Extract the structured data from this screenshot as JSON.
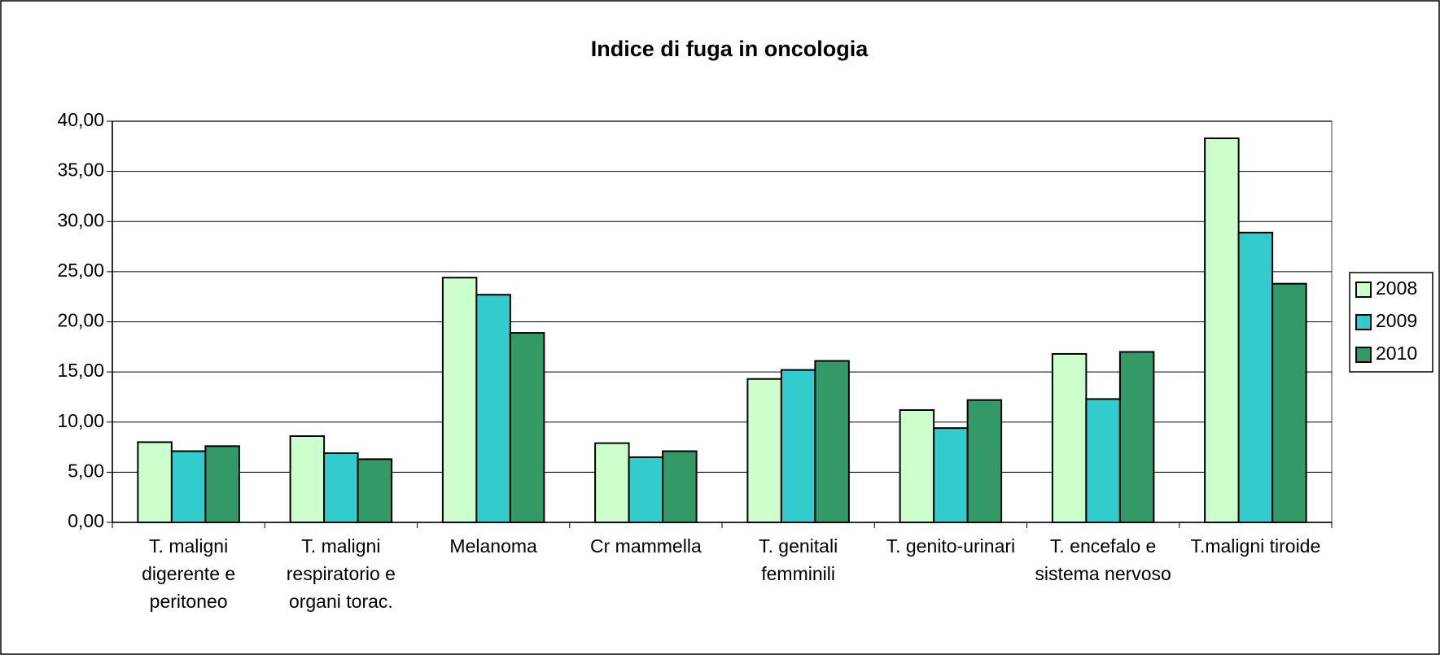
{
  "chart_data": {
    "type": "bar",
    "title": "Indice di fuga in oncologia",
    "categories": [
      "T. maligni digerente e peritoneo",
      "T. maligni respiratorio e organi torac.",
      "Melanoma",
      "Cr mammella",
      "T. genitali femminili",
      "T. genito-urinari",
      "T. encefalo e sistema nervoso",
      "T.maligni tiroide"
    ],
    "series": [
      {
        "name": "2008",
        "color": "#ccffcc",
        "values": [
          8.0,
          8.6,
          24.4,
          7.9,
          14.3,
          11.2,
          16.8,
          38.3
        ]
      },
      {
        "name": "2009",
        "color": "#33cccc",
        "values": [
          7.1,
          6.9,
          22.7,
          6.5,
          15.2,
          9.4,
          12.3,
          28.9
        ]
      },
      {
        "name": "2010",
        "color": "#339966",
        "values": [
          7.6,
          6.3,
          18.9,
          7.1,
          16.1,
          12.2,
          17.0,
          23.8
        ]
      }
    ],
    "ylim": [
      0,
      40
    ],
    "yticks": [
      {
        "value": 0,
        "label": "0,00"
      },
      {
        "value": 5,
        "label": "5,00"
      },
      {
        "value": 10,
        "label": "10,00"
      },
      {
        "value": 15,
        "label": "15,00"
      },
      {
        "value": 20,
        "label": "20,00"
      },
      {
        "value": 25,
        "label": "25,00"
      },
      {
        "value": 30,
        "label": "30,00"
      },
      {
        "value": 35,
        "label": "35,00"
      },
      {
        "value": 40,
        "label": "40,00"
      }
    ],
    "grid": true,
    "legend": "right"
  }
}
